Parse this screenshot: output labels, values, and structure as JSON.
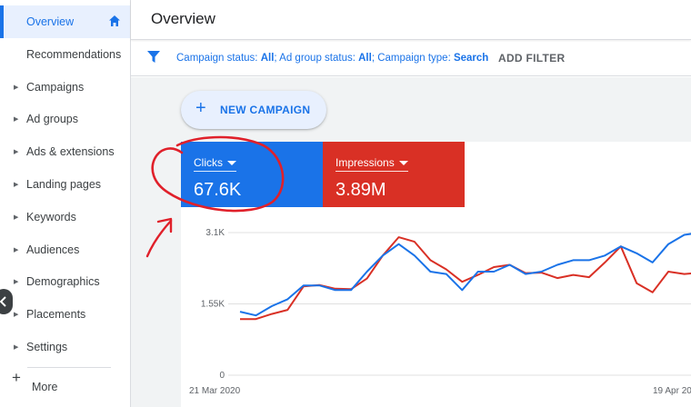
{
  "sidebar": {
    "items": [
      {
        "label": "Overview",
        "active": true
      },
      {
        "label": "Recommendations",
        "caret": false
      },
      {
        "label": "Campaigns",
        "caret": true
      },
      {
        "label": "Ad groups",
        "caret": true
      },
      {
        "label": "Ads & extensions",
        "caret": true
      },
      {
        "label": "Landing pages",
        "caret": true
      },
      {
        "label": "Keywords",
        "caret": true
      },
      {
        "label": "Audiences",
        "caret": true
      },
      {
        "label": "Demographics",
        "caret": true
      },
      {
        "label": "Placements",
        "caret": true
      },
      {
        "label": "Settings",
        "caret": true
      }
    ],
    "more_label": "More"
  },
  "header": {
    "title": "Overview"
  },
  "filter_bar": {
    "campaign_status_key": "Campaign status:",
    "campaign_status_value": "All",
    "ad_group_status_key": "Ad group status:",
    "ad_group_status_value": "All",
    "campaign_type_key": "Campaign type:",
    "campaign_type_value": "Search",
    "add_filter_label": "ADD FILTER"
  },
  "new_campaign": {
    "label": "NEW CAMPAIGN"
  },
  "metrics": {
    "clicks": {
      "name": "Clicks",
      "value": "67.6K",
      "color": "#1a73e8"
    },
    "impressions": {
      "name": "Impressions",
      "value": "3.89M",
      "color": "#d93025"
    }
  },
  "chart_data": {
    "type": "line",
    "y_ticks": [
      "3.1K",
      "1.55K",
      "0"
    ],
    "x_ticks": [
      "21 Mar 2020",
      "19 Apr 20"
    ],
    "ylim": [
      0,
      3100
    ],
    "grid": true,
    "series": [
      {
        "name": "Clicks",
        "color": "#1a73e8",
        "values": [
          1380,
          1300,
          1500,
          1650,
          1950,
          1950,
          1850,
          1850,
          2250,
          2600,
          2850,
          2600,
          2250,
          2200,
          1850,
          2250,
          2250,
          2400,
          2200,
          2250,
          2400,
          2500,
          2500,
          2600,
          2800,
          2650,
          2450,
          2850,
          3050,
          3100
        ]
      },
      {
        "name": "Impressions",
        "color": "#d93025",
        "values": [
          1220,
          1220,
          1330,
          1420,
          1930,
          1960,
          1880,
          1870,
          2100,
          2600,
          3000,
          2900,
          2500,
          2300,
          2030,
          2180,
          2350,
          2400,
          2220,
          2230,
          2110,
          2180,
          2130,
          2450,
          2800,
          2000,
          1800,
          2250,
          2200,
          2230
        ]
      }
    ]
  },
  "colors": {
    "accent": "#1a73e8",
    "danger": "#d93025",
    "annotation": "#e0202a"
  }
}
